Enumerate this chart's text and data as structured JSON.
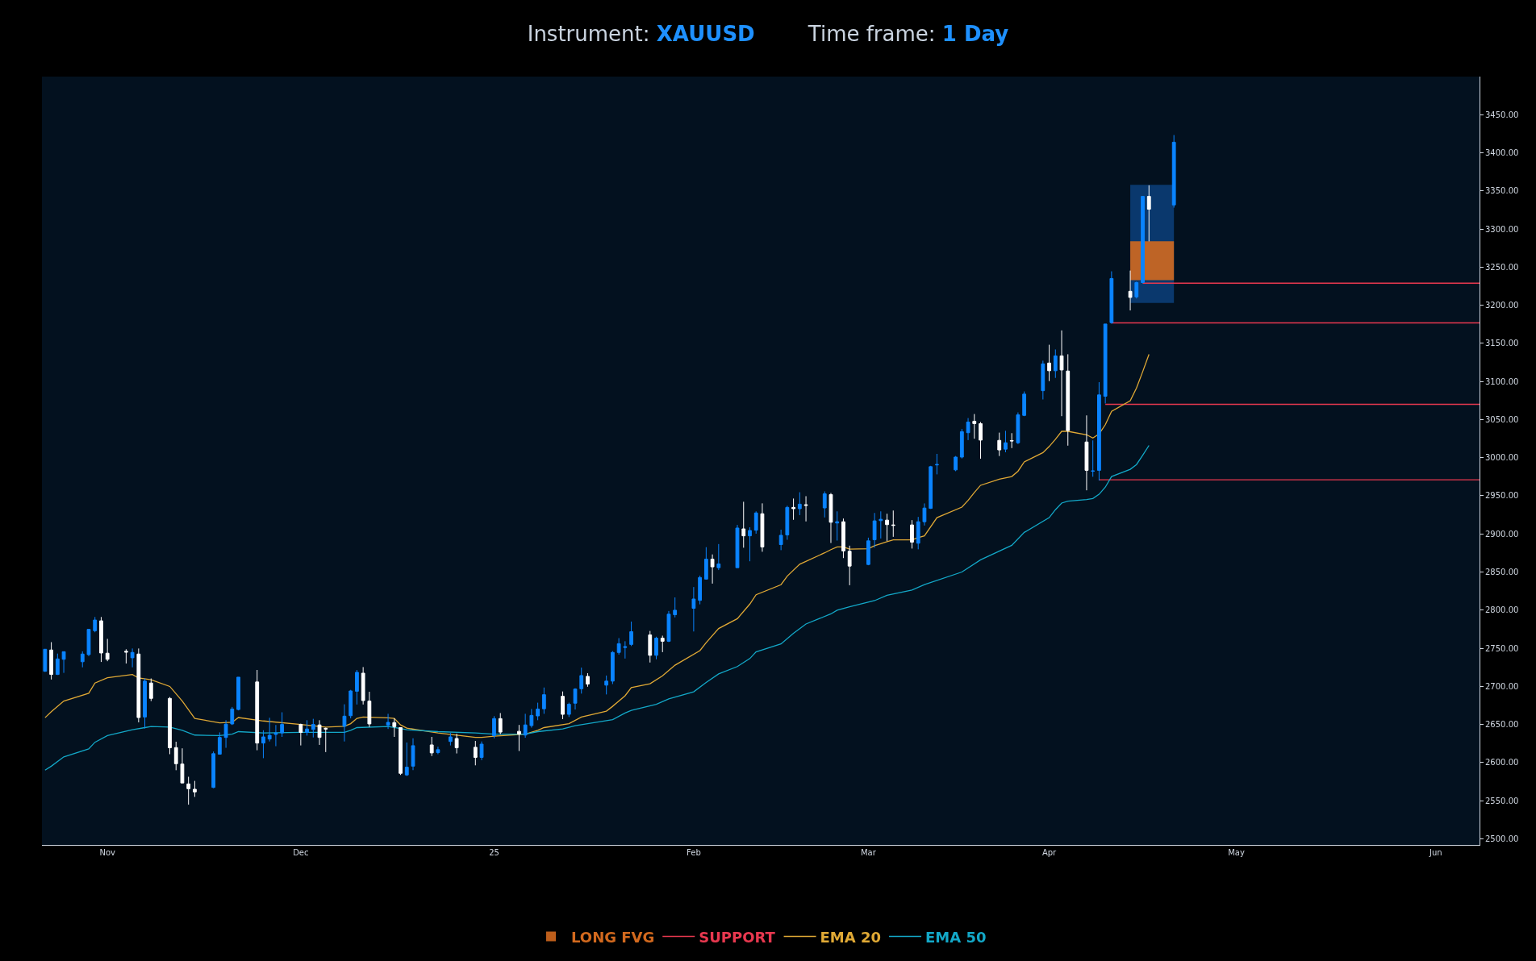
{
  "chart_data": {
    "type": "candlestick",
    "title": "Instrument: XAUUSD",
    "subtitle": "Time frame: 1 Day",
    "x": [
      "2024-10-22",
      "2024-10-23",
      "2024-10-24",
      "2024-10-25",
      "2024-10-28",
      "2024-10-29",
      "2024-10-30",
      "2024-10-31",
      "2024-11-01",
      "2024-11-04",
      "2024-11-05",
      "2024-11-06",
      "2024-11-07",
      "2024-11-08",
      "2024-11-11",
      "2024-11-12",
      "2024-11-13",
      "2024-11-14",
      "2024-11-15",
      "2024-11-18",
      "2024-11-19",
      "2024-11-20",
      "2024-11-21",
      "2024-11-22",
      "2024-11-25",
      "2024-11-26",
      "2024-11-27",
      "2024-11-28",
      "2024-11-29",
      "2024-12-02",
      "2024-12-03",
      "2024-12-04",
      "2024-12-05",
      "2024-12-06",
      "2024-12-09",
      "2024-12-10",
      "2024-12-11",
      "2024-12-12",
      "2024-12-13",
      "2024-12-16",
      "2024-12-17",
      "2024-12-18",
      "2024-12-19",
      "2024-12-20",
      "2024-12-23",
      "2024-12-24",
      "2024-12-26",
      "2024-12-27",
      "2024-12-30",
      "2024-12-31",
      "2025-01-02",
      "2025-01-03",
      "2025-01-06",
      "2025-01-07",
      "2025-01-08",
      "2025-01-09",
      "2025-01-10",
      "2025-01-13",
      "2025-01-14",
      "2025-01-15",
      "2025-01-16",
      "2025-01-17",
      "2025-01-20",
      "2025-01-21",
      "2025-01-22",
      "2025-01-23",
      "2025-01-24",
      "2025-01-27",
      "2025-01-28",
      "2025-01-29",
      "2025-01-30",
      "2025-01-31",
      "2025-02-03",
      "2025-02-04",
      "2025-02-05",
      "2025-02-06",
      "2025-02-07",
      "2025-02-10",
      "2025-02-11",
      "2025-02-12",
      "2025-02-13",
      "2025-02-14",
      "2025-02-17",
      "2025-02-18",
      "2025-02-19",
      "2025-02-20",
      "2025-02-21",
      "2025-02-24",
      "2025-02-25",
      "2025-02-26",
      "2025-02-27",
      "2025-02-28",
      "2025-03-03",
      "2025-03-04",
      "2025-03-05",
      "2025-03-06",
      "2025-03-07",
      "2025-03-10",
      "2025-03-11",
      "2025-03-12",
      "2025-03-13",
      "2025-03-14",
      "2025-03-17",
      "2025-03-18",
      "2025-03-19",
      "2025-03-20",
      "2025-03-21",
      "2025-03-24",
      "2025-03-25",
      "2025-03-26",
      "2025-03-27",
      "2025-03-28",
      "2025-03-31",
      "2025-04-01",
      "2025-04-02",
      "2025-04-03",
      "2025-04-04",
      "2025-04-07",
      "2025-04-08",
      "2025-04-09",
      "2025-04-10",
      "2025-04-11",
      "2025-04-14",
      "2025-04-15",
      "2025-04-16",
      "2025-04-17",
      "2025-04-21"
    ],
    "ohlc": [
      [
        2719.8,
        2749,
        2719,
        2748.7
      ],
      [
        2747.7,
        2758,
        2709,
        2715.6
      ],
      [
        2715.6,
        2743,
        2715,
        2736
      ],
      [
        2735.5,
        2745.5,
        2717.7,
        2745.5
      ],
      [
        2732.3,
        2745.9,
        2725,
        2742.4
      ],
      [
        2741.7,
        2775,
        2739.6,
        2774.8
      ],
      [
        2773,
        2791,
        2771,
        2787
      ],
      [
        2786,
        2791,
        2732,
        2743.8
      ],
      [
        2743.5,
        2762.3,
        2733,
        2735.5
      ],
      [
        2746,
        2748.7,
        2730,
        2745
      ],
      [
        2737.5,
        2749.7,
        2725,
        2744.5
      ],
      [
        2742.4,
        2749.7,
        2652.8,
        2659.1
      ],
      [
        2659.8,
        2710.4,
        2644.8,
        2706.9
      ],
      [
        2704.4,
        2710.4,
        2680.7,
        2684.2
      ],
      [
        2684.2,
        2686,
        2611,
        2619.4
      ],
      [
        2619.7,
        2627.4,
        2590,
        2598.5
      ],
      [
        2598.1,
        2618.7,
        2573,
        2573.3
      ],
      [
        2572,
        2581.4,
        2544.8,
        2565.7
      ],
      [
        2565,
        2576,
        2555,
        2561.5
      ],
      [
        2567.4,
        2614.5,
        2566.4,
        2611.7
      ],
      [
        2611,
        2639.6,
        2611,
        2633
      ],
      [
        2633,
        2655.6,
        2619.4,
        2650.4
      ],
      [
        2650.7,
        2673,
        2649.3,
        2670.3
      ],
      [
        2669.6,
        2712.1,
        2668.5,
        2712.1
      ],
      [
        2705.8,
        2721.5,
        2616.2,
        2625.6
      ],
      [
        2625.6,
        2642.4,
        2605.8,
        2633.7
      ],
      [
        2630.9,
        2658.8,
        2627.7,
        2635.8
      ],
      [
        2637,
        2649.3,
        2621.5,
        2638.8
      ],
      [
        2638.9,
        2666,
        2633.7,
        2650
      ],
      [
        2650,
        2651.1,
        2622.5,
        2639.6
      ],
      [
        2639.6,
        2655.6,
        2635.4,
        2644.1
      ],
      [
        2643.4,
        2657.4,
        2633,
        2650
      ],
      [
        2649.4,
        2655.6,
        2623.2,
        2633
      ],
      [
        2645,
        2645.9,
        2613.8,
        2644
      ],
      [
        2647.6,
        2676.5,
        2627.7,
        2660.9
      ],
      [
        2661.5,
        2695.4,
        2658,
        2694
      ],
      [
        2693.6,
        2721.5,
        2676.2,
        2718.4
      ],
      [
        2717.3,
        2725.3,
        2676.2,
        2681.4
      ],
      [
        2680.7,
        2692.9,
        2646.6,
        2650.7
      ],
      [
        2649.3,
        2664,
        2644.1,
        2652.8
      ],
      [
        2652.5,
        2658,
        2633.7,
        2647.2
      ],
      [
        2645.9,
        2645.9,
        2583.8,
        2585.9
      ],
      [
        2583.8,
        2626.3,
        2582.4,
        2594
      ],
      [
        2595.3,
        2631.9,
        2590.1,
        2622.2
      ],
      [
        2623.2,
        2633.7,
        2608.6,
        2612.7
      ],
      [
        2613.1,
        2620.8,
        2611,
        2617
      ],
      [
        2627.7,
        2638.9,
        2622.5,
        2633.7
      ],
      [
        2631.6,
        2637.8,
        2612,
        2619.4
      ],
      [
        2620.1,
        2628.4,
        2596.4,
        2606.8
      ],
      [
        2606.8,
        2627.7,
        2603.3,
        2624.2
      ],
      [
        2635.4,
        2660.9,
        2631.9,
        2657.7
      ],
      [
        2657.7,
        2665,
        2637,
        2640
      ],
      [
        2641,
        2649.4,
        2615.2,
        2637.5
      ],
      [
        2636.1,
        2664,
        2632.6,
        2649.4
      ],
      [
        2648.6,
        2670.3,
        2645.9,
        2661.9
      ],
      [
        2661.2,
        2678.6,
        2655.6,
        2670.3
      ],
      [
        2670.6,
        2698.5,
        2664,
        2689.1
      ],
      [
        2687,
        2693.3,
        2657,
        2663.3
      ],
      [
        2663.3,
        2678.6,
        2659.8,
        2676.5
      ],
      [
        2677.9,
        2697.5,
        2669.6,
        2696.4
      ],
      [
        2696.8,
        2724.6,
        2690.5,
        2714.2
      ],
      [
        2713.1,
        2717.3,
        2699.5,
        2703
      ],
      [
        2701.6,
        2714.2,
        2689.4,
        2706.9
      ],
      [
        2706.9,
        2746.3,
        2703,
        2744.5
      ],
      [
        2744.5,
        2763.3,
        2741.7,
        2756
      ],
      [
        2751,
        2759.2,
        2736.5,
        2752
      ],
      [
        2755,
        2785,
        2752.9,
        2771.7
      ],
      [
        2767.5,
        2772.7,
        2731.3,
        2740.7
      ],
      [
        2740.7,
        2765.1,
        2735.5,
        2763.3
      ],
      [
        2763.3,
        2766.5,
        2744.9,
        2759.2
      ],
      [
        2759.2,
        2798.9,
        2758.1,
        2794.7
      ],
      [
        2794,
        2816.7,
        2790.5,
        2799.9
      ],
      [
        2802.4,
        2830.3,
        2772,
        2814.6
      ],
      [
        2812.8,
        2845.3,
        2807.6,
        2842.8
      ],
      [
        2840.7,
        2882.6,
        2840,
        2866.9
      ],
      [
        2866.9,
        2873.1,
        2834.8,
        2856.8
      ],
      [
        2855.7,
        2886.7,
        2852.6,
        2860.6
      ],
      [
        2855.7,
        2911.8,
        2855.7,
        2907.7
      ],
      [
        2906.6,
        2942.2,
        2881.9,
        2897.5
      ],
      [
        2897.5,
        2908.7,
        2864.1,
        2904.5
      ],
      [
        2904.9,
        2929.6,
        2900.3,
        2927.5
      ],
      [
        2926.5,
        2940.1,
        2876.6,
        2882.9
      ],
      [
        2886,
        2905.6,
        2878.7,
        2898.2
      ],
      [
        2898.6,
        2936.9,
        2892.3,
        2934.8
      ],
      [
        2934.8,
        2946.4,
        2918.5,
        2933.1
      ],
      [
        2933.1,
        2954.7,
        2924.7,
        2939
      ],
      [
        2938.3,
        2949.5,
        2916.4,
        2937.5
      ],
      [
        2934.1,
        2955.8,
        2921.6,
        2952.6
      ],
      [
        2951.6,
        2953.7,
        2888.1,
        2915.3
      ],
      [
        2914.3,
        2929.6,
        2891.3,
        2916
      ],
      [
        2916,
        2920.2,
        2868.3,
        2877.7
      ],
      [
        2877.3,
        2884.6,
        2832.7,
        2857.8
      ],
      [
        2859.9,
        2895.1,
        2858.9,
        2890.9
      ],
      [
        2892.3,
        2927.5,
        2881.9,
        2917.1
      ],
      [
        2917.4,
        2929.6,
        2894,
        2919.2
      ],
      [
        2918.1,
        2926.5,
        2890.6,
        2912.2
      ],
      [
        2911.8,
        2930.7,
        2896.2,
        2911.2
      ],
      [
        2911.8,
        2918.1,
        2880.8,
        2889.2
      ],
      [
        2887.8,
        2922.3,
        2879.8,
        2916
      ],
      [
        2916,
        2940,
        2911,
        2933.9
      ],
      [
        2933.5,
        2989.3,
        2932.8,
        2988.2
      ],
      [
        2990.5,
        3005,
        2978.1,
        2991
      ],
      [
        2984,
        3002.2,
        2982.3,
        3000.8
      ],
      [
        3000.8,
        3037.7,
        2999,
        3034.2
      ],
      [
        3032.8,
        3052,
        3023.1,
        3046.8
      ],
      [
        3047.8,
        3057.3,
        3024.9,
        3044.7
      ],
      [
        3044.7,
        3046.8,
        2998.7,
        3023.1
      ],
      [
        3022.7,
        3032.9,
        3002.2,
        3010.2
      ],
      [
        3011.2,
        3035.3,
        3007.1,
        3019.6
      ],
      [
        3022.5,
        3032.2,
        3012.6,
        3022
      ],
      [
        3019.6,
        3059.4,
        3017.9,
        3056.2
      ],
      [
        3055.5,
        3086.9,
        3054.5,
        3083.4
      ],
      [
        3087.9,
        3127.3,
        3076.4,
        3123.1
      ],
      [
        3124.2,
        3148.2,
        3100.5,
        3114.1
      ],
      [
        3114.1,
        3142,
        3104.7,
        3133.6
      ],
      [
        3133.6,
        3167,
        3054.5,
        3115.1
      ],
      [
        3113.7,
        3135.7,
        3015.8,
        3035.6
      ],
      [
        3020.6,
        3055.5,
        2957.2,
        2983.4
      ],
      [
        2982.3,
        3022.7,
        2975,
        2982.6
      ],
      [
        2983.4,
        3099.1,
        2970.1,
        3082.4
      ],
      [
        3080.6,
        3175.4,
        3071.2,
        3175.4
      ],
      [
        3177.2,
        3244.5,
        3175.8,
        3235.1
      ],
      [
        3218.3,
        3245.5,
        3193.2,
        3210.3
      ],
      [
        3211,
        3230.9,
        3208.9,
        3229.8
      ],
      [
        3229.8,
        3342.8,
        3228.8,
        3342.8
      ],
      [
        3342.8,
        3357.4,
        3283.8,
        3326
      ],
      [
        3331.6,
        3423.3,
        3328.1,
        3413.9
      ]
    ],
    "colors": [
      "#0a84ff",
      "#ffffff",
      "#0a84ff",
      "#0a84ff",
      "#0a84ff",
      "#0a84ff",
      "#0a84ff",
      "#ffffff",
      "#ffffff",
      "#ffffff",
      "#0a84ff",
      "#ffffff",
      "#0a84ff",
      "#ffffff",
      "#ffffff",
      "#ffffff",
      "#ffffff",
      "#ffffff",
      "#ffffff",
      "#0a84ff",
      "#0a84ff",
      "#0a84ff",
      "#0a84ff",
      "#0a84ff",
      "#ffffff",
      "#0a84ff",
      "#0a84ff",
      "#0a84ff",
      "#0a84ff",
      "#ffffff",
      "#0a84ff",
      "#0a84ff",
      "#ffffff",
      "#ffffff",
      "#0a84ff",
      "#0a84ff",
      "#0a84ff",
      "#ffffff",
      "#ffffff",
      "#0a84ff",
      "#ffffff",
      "#ffffff",
      "#0a84ff",
      "#0a84ff",
      "#ffffff",
      "#0a84ff",
      "#0a84ff",
      "#ffffff",
      "#ffffff",
      "#0a84ff",
      "#0a84ff",
      "#ffffff",
      "#ffffff",
      "#0a84ff",
      "#0a84ff",
      "#0a84ff",
      "#0a84ff",
      "#ffffff",
      "#0a84ff",
      "#0a84ff",
      "#0a84ff",
      "#ffffff",
      "#0a84ff",
      "#0a84ff",
      "#0a84ff",
      "#0a84ff",
      "#0a84ff",
      "#ffffff",
      "#0a84ff",
      "#ffffff",
      "#0a84ff",
      "#0a84ff",
      "#0a84ff",
      "#0a84ff",
      "#0a84ff",
      "#ffffff",
      "#0a84ff",
      "#0a84ff",
      "#ffffff",
      "#0a84ff",
      "#0a84ff",
      "#ffffff",
      "#0a84ff",
      "#0a84ff",
      "#ffffff",
      "#0a84ff",
      "#ffffff",
      "#0a84ff",
      "#ffffff",
      "#0a84ff",
      "#ffffff",
      "#ffffff",
      "#0a84ff",
      "#0a84ff",
      "#0a84ff",
      "#ffffff",
      "#ffffff",
      "#ffffff",
      "#0a84ff",
      "#0a84ff",
      "#0a84ff",
      "#0a84ff",
      "#0a84ff",
      "#0a84ff",
      "#0a84ff",
      "#ffffff",
      "#ffffff",
      "#ffffff",
      "#0a84ff",
      "#ffffff",
      "#0a84ff",
      "#0a84ff",
      "#0a84ff",
      "#ffffff",
      "#0a84ff",
      "#ffffff",
      "#ffffff",
      "#ffffff",
      "#0a84ff",
      "#0a84ff",
      "#0a84ff",
      "#0a84ff",
      "#ffffff",
      "#0a84ff",
      "#0a84ff",
      "#ffffff",
      "#0a84ff"
    ],
    "series": [
      {
        "type": "bar",
        "color": "#0b3d75",
        "x": [
          "2025-04-17T12:00"
        ],
        "base": [
          3203
        ],
        "values": [
          155
        ]
      },
      {
        "type": "bar",
        "name": "LONG FVG",
        "color": "#d2691e",
        "x": [
          "2025-04-17T12:00"
        ],
        "base": [
          3233
        ],
        "values": [
          51
        ]
      },
      {
        "type": "line",
        "name": "SUPPORT",
        "color": "#e8384f",
        "x": [
          "2025-04-09",
          "2025-06-09"
        ],
        "values": [
          2971,
          2971
        ]
      },
      {
        "type": "line",
        "color": "#e8384f",
        "x": [
          "2025-04-10",
          "2025-06-09"
        ],
        "values": [
          3070,
          3070
        ]
      },
      {
        "type": "line",
        "color": "#e8384f",
        "x": [
          "2025-04-11",
          "2025-06-09"
        ],
        "values": [
          3177,
          3177
        ]
      },
      {
        "type": "line",
        "color": "#e8384f",
        "x": [
          "2025-04-16",
          "2025-06-09"
        ],
        "values": [
          3229,
          3229
        ]
      },
      {
        "type": "line",
        "name": "EMA 20",
        "color": "#e0a935",
        "x": [
          "2024-10-22",
          "2024-10-23",
          "2024-10-25",
          "2024-10-29",
          "2024-10-30",
          "2024-11-01",
          "2024-11-05",
          "2024-11-06",
          "2024-11-08",
          "2024-11-11",
          "2024-11-13",
          "2024-11-15",
          "2024-11-19",
          "2024-11-21",
          "2024-11-22",
          "2024-11-26",
          "2024-12-02",
          "2024-12-06",
          "2024-12-09",
          "2024-12-10",
          "2024-12-11",
          "2024-12-12",
          "2024-12-16",
          "2024-12-17",
          "2024-12-18",
          "2024-12-19",
          "2024-12-24",
          "2024-12-30",
          "2024-12-31",
          "2025-01-02",
          "2025-01-07",
          "2025-01-09",
          "2025-01-10",
          "2025-01-14",
          "2025-01-16",
          "2025-01-20",
          "2025-01-21",
          "2025-01-23",
          "2025-01-24",
          "2025-01-27",
          "2025-01-29",
          "2025-01-31",
          "2025-02-04",
          "2025-02-05",
          "2025-02-07",
          "2025-02-10",
          "2025-02-12",
          "2025-02-13",
          "2025-02-17",
          "2025-02-18",
          "2025-02-20",
          "2025-02-24",
          "2025-02-25",
          "2025-02-26",
          "2025-02-27",
          "2025-02-28",
          "2025-03-03",
          "2025-03-04",
          "2025-03-06",
          "2025-03-07",
          "2025-03-10",
          "2025-03-11",
          "2025-03-12",
          "2025-03-14",
          "2025-03-18",
          "2025-03-19",
          "2025-03-20",
          "2025-03-21",
          "2025-03-24",
          "2025-03-26",
          "2025-03-27",
          "2025-03-28",
          "2025-03-31",
          "2025-04-01",
          "2025-04-02",
          "2025-04-03",
          "2025-04-04",
          "2025-04-07",
          "2025-04-08",
          "2025-04-09",
          "2025-04-10",
          "2025-04-11",
          "2025-04-14",
          "2025-04-15",
          "2025-04-16",
          "2025-04-17"
        ],
        "values": [
          2659,
          2666.8,
          2680.7,
          2691,
          2704.4,
          2711.4,
          2715.6,
          2711,
          2708.6,
          2699.9,
          2680.7,
          2658,
          2652.1,
          2652.8,
          2659.1,
          2654.6,
          2650,
          2646.6,
          2647.6,
          2651.1,
          2658,
          2659.8,
          2658.8,
          2658,
          2649.4,
          2645.2,
          2638.9,
          2633,
          2633,
          2634.7,
          2637.2,
          2642.4,
          2645.9,
          2651.1,
          2659.8,
          2667.5,
          2673.8,
          2687.7,
          2698.5,
          2703.4,
          2713.8,
          2727.8,
          2746.9,
          2757.4,
          2775.9,
          2788.8,
          2808,
          2820.2,
          2833.4,
          2844.6,
          2860.2,
          2875.2,
          2879.4,
          2882.9,
          2882.9,
          2880.1,
          2880.5,
          2884.6,
          2889.9,
          2892.3,
          2892.3,
          2895.1,
          2897.5,
          2921.3,
          2935.2,
          2944,
          2954.4,
          2963.8,
          2971.8,
          2975.3,
          2982.3,
          2994.5,
          3006.7,
          3014.7,
          3024.2,
          3034.6,
          3034.6,
          3030.1,
          3025.9,
          3031.1,
          3043.3,
          3060.8,
          3074.7,
          3091.4,
          3113,
          3135.7
        ]
      },
      {
        "type": "line",
        "name": "EMA 50",
        "color": "#13a8c8",
        "x": [
          "2024-10-22",
          "2024-10-23",
          "2024-10-25",
          "2024-10-29",
          "2024-10-30",
          "2024-11-01",
          "2024-11-05",
          "2024-11-07",
          "2024-11-08",
          "2024-11-11",
          "2024-11-13",
          "2024-11-15",
          "2024-11-19",
          "2024-11-21",
          "2024-11-22",
          "2024-11-26",
          "2024-12-02",
          "2024-12-06",
          "2024-12-09",
          "2024-12-10",
          "2024-12-11",
          "2024-12-16",
          "2024-12-18",
          "2024-12-19",
          "2024-12-24",
          "2024-12-30",
          "2025-01-02",
          "2025-01-07",
          "2025-01-09",
          "2025-01-13",
          "2025-01-15",
          "2025-01-17",
          "2025-01-21",
          "2025-01-23",
          "2025-01-24",
          "2025-01-28",
          "2025-01-30",
          "2025-02-03",
          "2025-02-05",
          "2025-02-07",
          "2025-02-10",
          "2025-02-12",
          "2025-02-13",
          "2025-02-17",
          "2025-02-19",
          "2025-02-21",
          "2025-02-25",
          "2025-02-26",
          "2025-02-28",
          "2025-03-04",
          "2025-03-06",
          "2025-03-10",
          "2025-03-12",
          "2025-03-18",
          "2025-03-21",
          "2025-03-26",
          "2025-03-28",
          "2025-04-01",
          "2025-04-02",
          "2025-04-03",
          "2025-04-04",
          "2025-04-07",
          "2025-04-08",
          "2025-04-09",
          "2025-04-10",
          "2025-04-11",
          "2025-04-14",
          "2025-04-15",
          "2025-04-16",
          "2025-04-17"
        ],
        "values": [
          2590.1,
          2595.3,
          2607.5,
          2618,
          2626.7,
          2635.4,
          2643.1,
          2645.9,
          2647.3,
          2646.6,
          2642.4,
          2636.1,
          2635.4,
          2637.2,
          2640.6,
          2638.9,
          2639.6,
          2639.6,
          2639.6,
          2642.4,
          2645.9,
          2647.3,
          2644.8,
          2643.1,
          2640.6,
          2638.9,
          2637.2,
          2637.2,
          2640.6,
          2644.1,
          2648.3,
          2651.1,
          2656.3,
          2665,
          2668.5,
          2676.5,
          2683.5,
          2692.9,
          2705.1,
          2716.3,
          2726,
          2736.5,
          2745.2,
          2755.7,
          2769.6,
          2781.8,
          2795.1,
          2799.9,
          2804.5,
          2812.5,
          2819.5,
          2826.4,
          2833.4,
          2850,
          2866,
          2885,
          2902,
          2921.3,
          2931.8,
          2940.5,
          2942.9,
          2945,
          2946.4,
          2952,
          2961.4,
          2975.3,
          2984.8,
          2991,
          3003.2,
          3016.1
        ]
      }
    ],
    "xlim": [
      "2024-10-21T12:00",
      "2025-06-09"
    ],
    "xticks": [
      {
        "value": "2024-11-01",
        "label": "Nov"
      },
      {
        "value": "2024-12-02",
        "label": "Dec"
      },
      {
        "value": "2025-01-02",
        "label": "25"
      },
      {
        "value": "2025-02-03",
        "label": "Feb"
      },
      {
        "value": "2025-03-03",
        "label": "Mar"
      },
      {
        "value": "2025-04-01",
        "label": "Apr"
      },
      {
        "value": "2025-05-01",
        "label": "May"
      },
      {
        "value": "2025-06-02",
        "label": "Jun"
      }
    ],
    "ylim": [
      2492,
      3500
    ],
    "yticks": [
      {
        "value": 2500,
        "label": "2500.00"
      },
      {
        "value": 2550,
        "label": "2550.00"
      },
      {
        "value": 2600,
        "label": "2600.00"
      },
      {
        "value": 2650,
        "label": "2650.00"
      },
      {
        "value": 2700,
        "label": "2700.00"
      },
      {
        "value": 2750,
        "label": "2750.00"
      },
      {
        "value": 2800,
        "label": "2800.00"
      },
      {
        "value": 2850,
        "label": "2850.00"
      },
      {
        "value": 2900,
        "label": "2900.00"
      },
      {
        "value": 2950,
        "label": "2950.00"
      },
      {
        "value": 3000,
        "label": "3000.00"
      },
      {
        "value": 3050,
        "label": "3050.00"
      },
      {
        "value": 3100,
        "label": "3100.00"
      },
      {
        "value": 3150,
        "label": "3150.00"
      },
      {
        "value": 3200,
        "label": "3200.00"
      },
      {
        "value": 3250,
        "label": "3250.00"
      },
      {
        "value": 3300,
        "label": "3300.00"
      },
      {
        "value": 3350,
        "label": "3350.00"
      },
      {
        "value": 3400,
        "label": "3400.00"
      },
      {
        "value": 3450,
        "label": "3450.00"
      }
    ],
    "grid": false,
    "legend": "bottom"
  }
}
